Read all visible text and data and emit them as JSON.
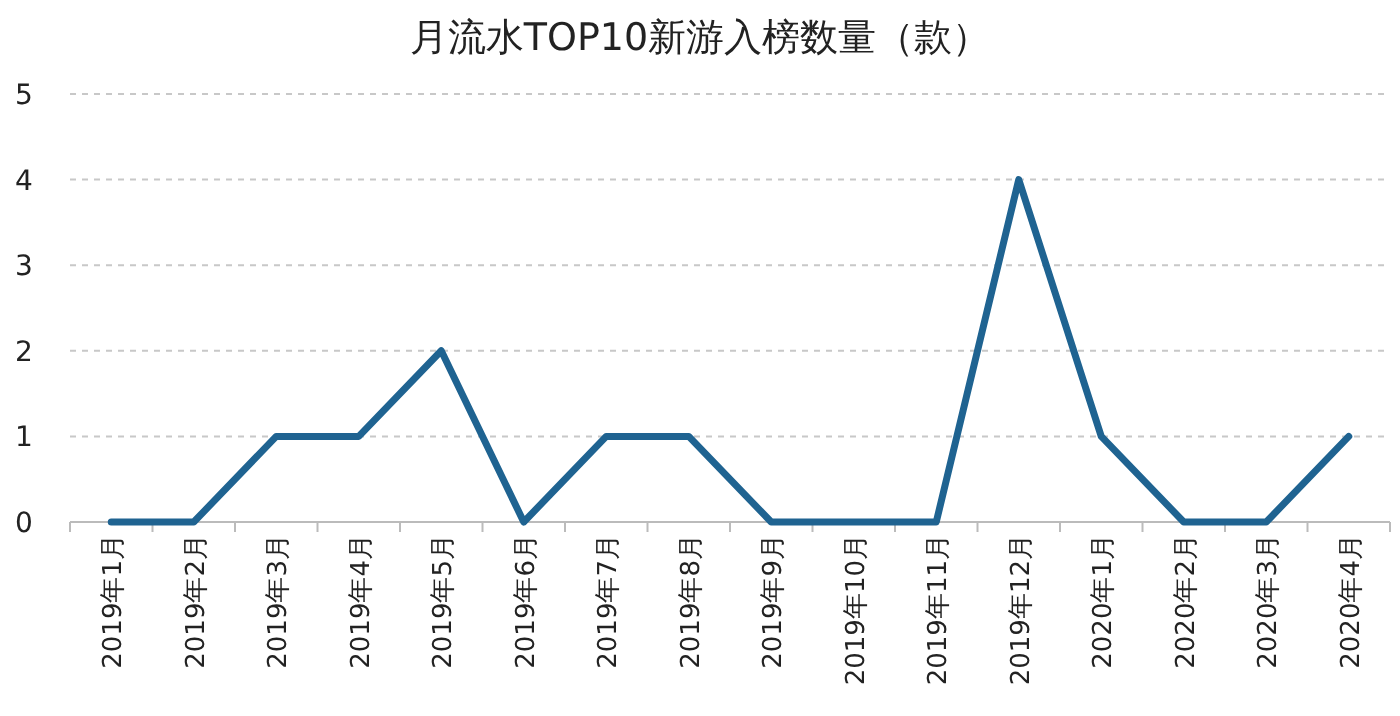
{
  "chart_data": {
    "type": "line",
    "title": "月流水TOP10新游入榜数量（款）",
    "categories": [
      "2019年1月",
      "2019年2月",
      "2019年3月",
      "2019年4月",
      "2019年5月",
      "2019年6月",
      "2019年7月",
      "2019年8月",
      "2019年9月",
      "2019年10月",
      "2019年11月",
      "2019年12月",
      "2020年1月",
      "2020年2月",
      "2020年3月",
      "2020年4月"
    ],
    "series": [
      {
        "color": "#1f6391",
        "values": [
          0,
          0,
          1,
          1,
          2,
          0,
          1,
          1,
          0,
          0,
          0,
          4,
          1,
          0,
          0,
          1
        ]
      }
    ],
    "ylim": [
      0,
      5
    ],
    "yticks": [
      0,
      1,
      2,
      3,
      4,
      5
    ],
    "grid": "y",
    "marker": "none",
    "line_style": "solid"
  }
}
